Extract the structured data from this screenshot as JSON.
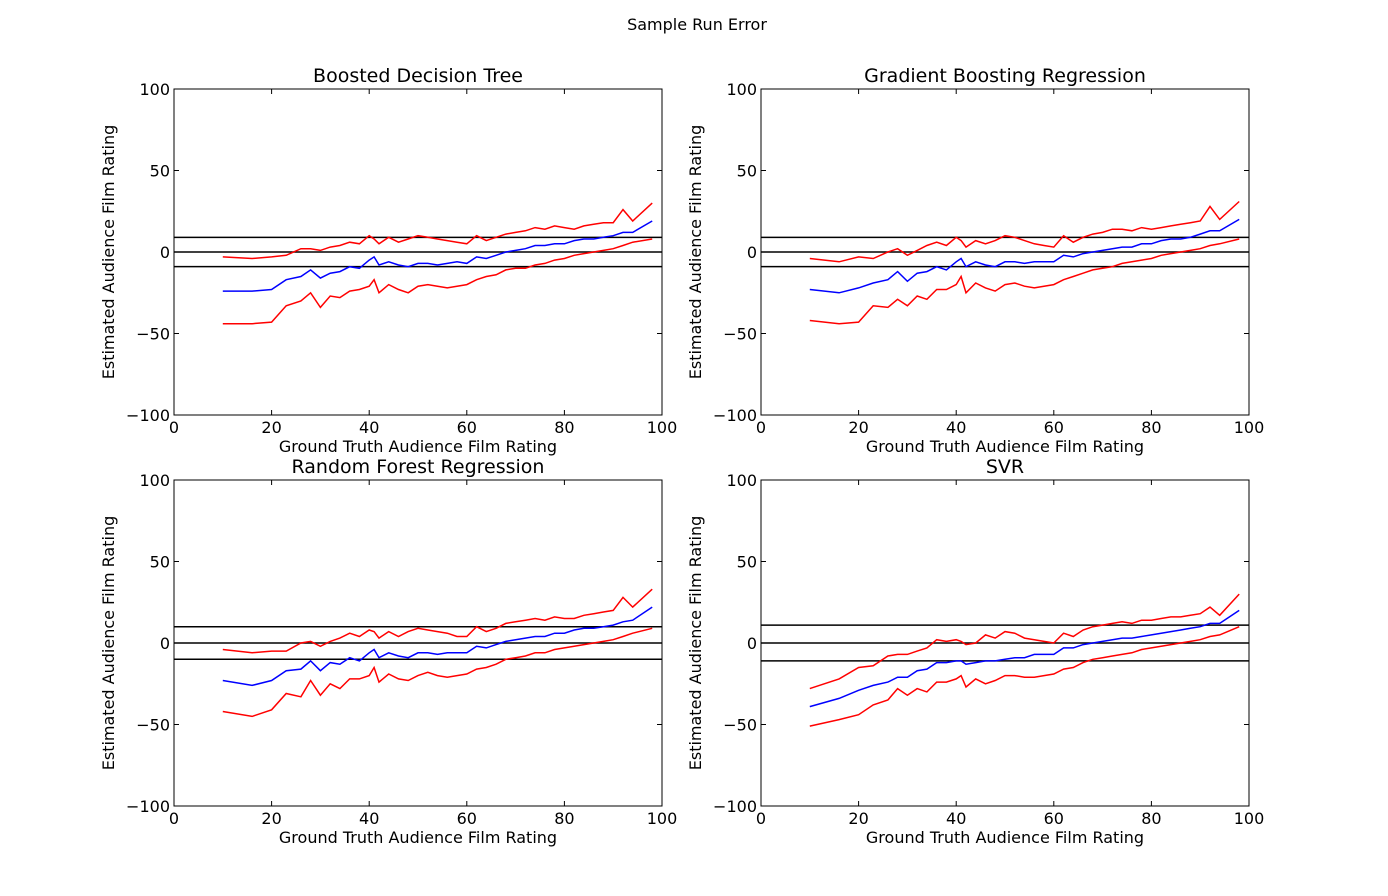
{
  "suptitle": "Sample Run Error",
  "colors": {
    "mean": "#0000ff",
    "bounds": "#ff0000",
    "reference": "#000000"
  },
  "chart_data": [
    {
      "type": "line",
      "title": "Boosted Decision Tree",
      "xlabel": "Ground Truth Audience Film Rating",
      "ylabel": "Estimated Audience Film Rating",
      "xlim": [
        0,
        100
      ],
      "ylim": [
        -100,
        100
      ],
      "xticks": [
        "0",
        "20",
        "40",
        "60",
        "80",
        "100"
      ],
      "yticks": [
        "100",
        "50",
        "0",
        "−50",
        "−100"
      ],
      "hlines": [
        9,
        0,
        -9
      ],
      "x": [
        10,
        16,
        20,
        23,
        26,
        28,
        30,
        32,
        34,
        36,
        38,
        40,
        41,
        42,
        44,
        46,
        48,
        50,
        52,
        54,
        56,
        58,
        60,
        62,
        64,
        66,
        68,
        70,
        72,
        74,
        76,
        78,
        80,
        82,
        84,
        86,
        88,
        90,
        92,
        94,
        98
      ],
      "series": [
        {
          "role": "upper",
          "values": [
            -3,
            -4,
            -3,
            -2,
            2,
            2,
            1,
            3,
            4,
            6,
            5,
            10,
            8,
            5,
            9,
            6,
            8,
            10,
            9,
            8,
            7,
            6,
            5,
            10,
            7,
            9,
            11,
            12,
            13,
            15,
            14,
            16,
            15,
            14,
            16,
            17,
            18,
            18,
            26,
            19,
            30
          ]
        },
        {
          "role": "mean",
          "values": [
            -24,
            -24,
            -23,
            -17,
            -15,
            -11,
            -16,
            -13,
            -12,
            -9,
            -10,
            -5,
            -3,
            -8,
            -6,
            -8,
            -9,
            -7,
            -7,
            -8,
            -7,
            -6,
            -7,
            -3,
            -4,
            -2,
            0,
            1,
            2,
            4,
            4,
            5,
            5,
            7,
            8,
            8,
            9,
            10,
            12,
            12,
            19
          ]
        },
        {
          "role": "lower",
          "values": [
            -44,
            -44,
            -43,
            -33,
            -30,
            -25,
            -34,
            -27,
            -28,
            -24,
            -23,
            -21,
            -17,
            -25,
            -20,
            -23,
            -25,
            -21,
            -20,
            -21,
            -22,
            -21,
            -20,
            -17,
            -15,
            -14,
            -11,
            -10,
            -10,
            -8,
            -7,
            -5,
            -4,
            -2,
            -1,
            0,
            1,
            2,
            4,
            6,
            8
          ]
        }
      ]
    },
    {
      "type": "line",
      "title": "Gradient Boosting Regression",
      "xlabel": "Ground Truth Audience Film Rating",
      "ylabel": "Estimated Audience Film Rating",
      "xlim": [
        0,
        100
      ],
      "ylim": [
        -100,
        100
      ],
      "xticks": [
        "0",
        "20",
        "40",
        "60",
        "80",
        "100"
      ],
      "yticks": [
        "100",
        "50",
        "0",
        "−50",
        "−100"
      ],
      "hlines": [
        9,
        0,
        -9
      ],
      "x": [
        10,
        16,
        20,
        23,
        26,
        28,
        30,
        32,
        34,
        36,
        38,
        40,
        41,
        42,
        44,
        46,
        48,
        50,
        52,
        54,
        56,
        58,
        60,
        62,
        64,
        66,
        68,
        70,
        72,
        74,
        76,
        78,
        80,
        82,
        84,
        86,
        88,
        90,
        92,
        94,
        98
      ],
      "series": [
        {
          "role": "upper",
          "values": [
            -4,
            -6,
            -3,
            -4,
            0,
            2,
            -2,
            1,
            4,
            6,
            4,
            9,
            7,
            3,
            7,
            5,
            7,
            10,
            9,
            7,
            5,
            4,
            3,
            10,
            6,
            9,
            11,
            12,
            14,
            14,
            13,
            15,
            14,
            15,
            16,
            17,
            18,
            19,
            28,
            20,
            31
          ]
        },
        {
          "role": "mean",
          "values": [
            -23,
            -25,
            -22,
            -19,
            -17,
            -12,
            -18,
            -13,
            -12,
            -9,
            -11,
            -6,
            -4,
            -9,
            -6,
            -8,
            -9,
            -6,
            -6,
            -7,
            -6,
            -6,
            -6,
            -2,
            -3,
            -1,
            0,
            1,
            2,
            3,
            3,
            5,
            5,
            7,
            8,
            8,
            9,
            11,
            13,
            13,
            20
          ]
        },
        {
          "role": "lower",
          "values": [
            -42,
            -44,
            -43,
            -33,
            -34,
            -29,
            -33,
            -27,
            -29,
            -23,
            -23,
            -20,
            -15,
            -25,
            -19,
            -22,
            -24,
            -20,
            -19,
            -21,
            -22,
            -21,
            -20,
            -17,
            -15,
            -13,
            -11,
            -10,
            -9,
            -7,
            -6,
            -5,
            -4,
            -2,
            -1,
            0,
            1,
            2,
            4,
            5,
            8
          ]
        }
      ]
    },
    {
      "type": "line",
      "title": "Random Forest Regression",
      "xlabel": "Ground Truth Audience Film Rating",
      "ylabel": "Estimated Audience Film Rating",
      "xlim": [
        0,
        100
      ],
      "ylim": [
        -100,
        100
      ],
      "xticks": [
        "0",
        "20",
        "40",
        "60",
        "80",
        "100"
      ],
      "yticks": [
        "100",
        "50",
        "0",
        "−50",
        "−100"
      ],
      "hlines": [
        10,
        0,
        -10
      ],
      "x": [
        10,
        16,
        20,
        23,
        26,
        28,
        30,
        32,
        34,
        36,
        38,
        40,
        41,
        42,
        44,
        46,
        48,
        50,
        52,
        54,
        56,
        58,
        60,
        62,
        64,
        66,
        68,
        70,
        72,
        74,
        76,
        78,
        80,
        82,
        84,
        86,
        88,
        90,
        92,
        94,
        98
      ],
      "series": [
        {
          "role": "upper",
          "values": [
            -4,
            -6,
            -5,
            -5,
            0,
            1,
            -2,
            1,
            3,
            6,
            4,
            8,
            7,
            3,
            7,
            4,
            7,
            9,
            8,
            7,
            6,
            4,
            4,
            10,
            7,
            9,
            12,
            13,
            14,
            15,
            14,
            16,
            15,
            15,
            17,
            18,
            19,
            20,
            28,
            22,
            33
          ]
        },
        {
          "role": "mean",
          "values": [
            -23,
            -26,
            -23,
            -17,
            -16,
            -11,
            -17,
            -12,
            -13,
            -9,
            -11,
            -6,
            -4,
            -9,
            -6,
            -8,
            -9,
            -6,
            -6,
            -7,
            -6,
            -6,
            -6,
            -2,
            -3,
            -1,
            1,
            2,
            3,
            4,
            4,
            6,
            6,
            8,
            9,
            9,
            10,
            11,
            13,
            14,
            22
          ]
        },
        {
          "role": "lower",
          "values": [
            -42,
            -45,
            -41,
            -31,
            -33,
            -23,
            -32,
            -25,
            -28,
            -22,
            -22,
            -20,
            -15,
            -24,
            -19,
            -22,
            -23,
            -20,
            -18,
            -20,
            -21,
            -20,
            -19,
            -16,
            -15,
            -13,
            -10,
            -9,
            -8,
            -6,
            -6,
            -4,
            -3,
            -2,
            -1,
            0,
            1,
            2,
            4,
            6,
            9
          ]
        }
      ]
    },
    {
      "type": "line",
      "title": "SVR",
      "xlabel": "Ground Truth Audience Film Rating",
      "ylabel": "Estimated Audience Film Rating",
      "xlim": [
        0,
        100
      ],
      "ylim": [
        -100,
        100
      ],
      "xticks": [
        "0",
        "20",
        "40",
        "60",
        "80",
        "100"
      ],
      "yticks": [
        "100",
        "50",
        "0",
        "−50",
        "−100"
      ],
      "hlines": [
        11,
        0,
        -11
      ],
      "x": [
        10,
        16,
        20,
        23,
        26,
        28,
        30,
        32,
        34,
        36,
        38,
        40,
        41,
        42,
        44,
        46,
        48,
        50,
        52,
        54,
        56,
        58,
        60,
        62,
        64,
        66,
        68,
        70,
        72,
        74,
        76,
        78,
        80,
        82,
        84,
        86,
        88,
        90,
        92,
        94,
        98
      ],
      "series": [
        {
          "role": "upper",
          "values": [
            -28,
            -22,
            -15,
            -14,
            -8,
            -7,
            -7,
            -5,
            -3,
            2,
            1,
            2,
            1,
            -1,
            0,
            5,
            3,
            7,
            6,
            3,
            2,
            1,
            0,
            6,
            4,
            8,
            10,
            11,
            12,
            13,
            12,
            14,
            14,
            15,
            16,
            16,
            17,
            18,
            22,
            17,
            30
          ]
        },
        {
          "role": "mean",
          "values": [
            -39,
            -34,
            -29,
            -26,
            -24,
            -21,
            -21,
            -17,
            -16,
            -12,
            -12,
            -11,
            -11,
            -13,
            -12,
            -11,
            -11,
            -10,
            -9,
            -9,
            -7,
            -7,
            -7,
            -3,
            -3,
            -1,
            0,
            1,
            2,
            3,
            3,
            4,
            5,
            6,
            7,
            8,
            9,
            10,
            12,
            12,
            20
          ]
        },
        {
          "role": "lower",
          "values": [
            -51,
            -47,
            -44,
            -38,
            -35,
            -28,
            -32,
            -28,
            -30,
            -24,
            -24,
            -22,
            -20,
            -27,
            -22,
            -25,
            -23,
            -20,
            -20,
            -21,
            -21,
            -20,
            -19,
            -16,
            -15,
            -12,
            -10,
            -9,
            -8,
            -7,
            -6,
            -4,
            -3,
            -2,
            -1,
            0,
            1,
            2,
            4,
            5,
            10
          ]
        }
      ]
    }
  ]
}
